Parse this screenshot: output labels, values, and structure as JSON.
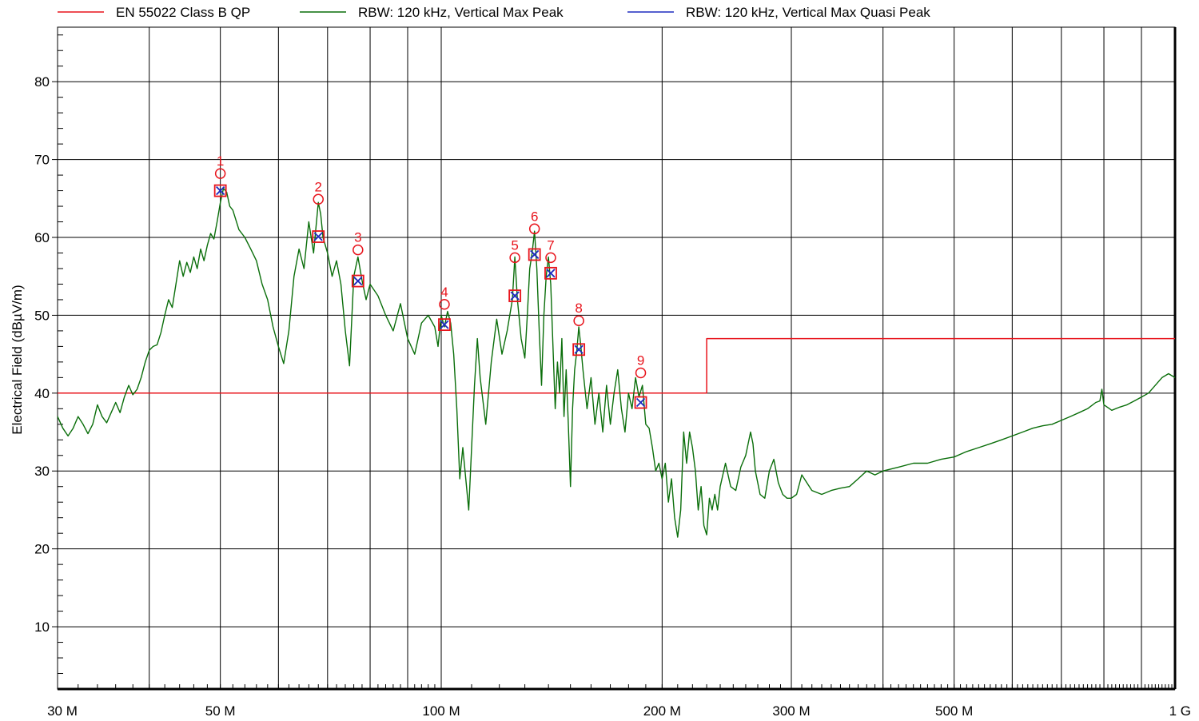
{
  "chart_data": {
    "type": "line",
    "xscale": "log",
    "xlim": [
      30,
      1000
    ],
    "ylim": [
      2,
      87
    ],
    "xlabel": "",
    "ylabel": "Electrical Field (dBµV/m)",
    "grid": true,
    "legend_position": "top",
    "x_major_ticks": [
      {
        "value": 30,
        "label": "30 M"
      },
      {
        "value": 50,
        "label": "50 M"
      },
      {
        "value": 100,
        "label": "100 M"
      },
      {
        "value": 200,
        "label": "200 M"
      },
      {
        "value": 300,
        "label": "300 M"
      },
      {
        "value": 500,
        "label": "500 M"
      },
      {
        "value": 1000,
        "label": "1 G"
      }
    ],
    "x_minor_grid": [
      40,
      60,
      70,
      80,
      90,
      400,
      600,
      700,
      800,
      900
    ],
    "y_ticks": [
      {
        "value": 10,
        "label": "10"
      },
      {
        "value": 20,
        "label": "20"
      },
      {
        "value": 30,
        "label": "30"
      },
      {
        "value": 40,
        "label": "40"
      },
      {
        "value": 50,
        "label": "50"
      },
      {
        "value": 60,
        "label": "60"
      },
      {
        "value": 70,
        "label": "70"
      },
      {
        "value": 80,
        "label": "80"
      }
    ],
    "series": [
      {
        "name": "EN 55022 Class B QP",
        "color": "#e8141c",
        "points": [
          [
            30,
            40
          ],
          [
            230,
            40
          ],
          [
            230,
            47
          ],
          [
            1000,
            47
          ]
        ]
      },
      {
        "name": "RBW: 120 kHz, Vertical Max Peak",
        "color": "#0a6e0a",
        "points": [
          [
            30,
            37
          ],
          [
            30.5,
            35.5
          ],
          [
            31,
            34.5
          ],
          [
            31.5,
            35.5
          ],
          [
            32,
            37
          ],
          [
            32.5,
            36
          ],
          [
            33,
            34.8
          ],
          [
            33.5,
            36
          ],
          [
            34,
            38.5
          ],
          [
            34.5,
            37
          ],
          [
            35,
            36.2
          ],
          [
            35.5,
            37.5
          ],
          [
            36,
            38.8
          ],
          [
            36.5,
            37.5
          ],
          [
            37,
            39.5
          ],
          [
            37.5,
            41
          ],
          [
            38,
            39.8
          ],
          [
            38.5,
            40.5
          ],
          [
            39,
            42
          ],
          [
            39.5,
            44
          ],
          [
            40,
            45.5
          ],
          [
            40.5,
            46
          ],
          [
            41,
            46.2
          ],
          [
            41.5,
            47.8
          ],
          [
            42,
            50
          ],
          [
            42.5,
            52
          ],
          [
            43,
            51
          ],
          [
            43.5,
            54
          ],
          [
            44,
            57
          ],
          [
            44.5,
            55
          ],
          [
            45,
            56.8
          ],
          [
            45.5,
            55.5
          ],
          [
            46,
            57.5
          ],
          [
            46.5,
            56
          ],
          [
            47,
            58.5
          ],
          [
            47.5,
            57
          ],
          [
            48,
            59
          ],
          [
            48.5,
            60.5
          ],
          [
            49,
            59.8
          ],
          [
            49.5,
            62
          ],
          [
            50,
            64.5
          ],
          [
            50.5,
            66.3
          ],
          [
            51,
            65.8
          ],
          [
            51.5,
            64
          ],
          [
            52,
            63.5
          ],
          [
            53,
            61
          ],
          [
            54,
            60
          ],
          [
            55,
            58.5
          ],
          [
            56,
            57
          ],
          [
            57,
            54
          ],
          [
            58,
            52
          ],
          [
            59,
            48.5
          ],
          [
            60,
            46
          ],
          [
            61,
            43.8
          ],
          [
            62,
            48
          ],
          [
            63,
            55
          ],
          [
            64,
            58.5
          ],
          [
            65,
            56
          ],
          [
            66,
            62
          ],
          [
            67,
            58
          ],
          [
            68,
            64.5
          ],
          [
            68.5,
            63
          ],
          [
            69,
            60
          ],
          [
            70,
            58
          ],
          [
            71,
            55
          ],
          [
            72,
            57
          ],
          [
            73,
            54
          ],
          [
            74,
            48
          ],
          [
            75,
            43.5
          ],
          [
            76,
            55
          ],
          [
            77,
            57.5
          ],
          [
            78,
            54.5
          ],
          [
            79,
            52
          ],
          [
            80,
            54
          ],
          [
            82,
            52.5
          ],
          [
            84,
            50
          ],
          [
            86,
            48
          ],
          [
            88,
            51.5
          ],
          [
            90,
            47
          ],
          [
            92,
            45
          ],
          [
            94,
            49
          ],
          [
            96,
            50
          ],
          [
            98,
            48.5
          ],
          [
            99,
            46
          ],
          [
            100,
            50
          ],
          [
            101,
            48.5
          ],
          [
            102,
            50.5
          ],
          [
            103,
            49
          ],
          [
            104,
            45
          ],
          [
            105,
            38
          ],
          [
            106,
            29
          ],
          [
            107,
            33
          ],
          [
            108,
            29
          ],
          [
            109,
            25
          ],
          [
            110,
            33
          ],
          [
            111,
            41
          ],
          [
            112,
            47
          ],
          [
            113,
            42
          ],
          [
            115,
            36
          ],
          [
            117,
            44
          ],
          [
            119,
            49.5
          ],
          [
            121,
            45
          ],
          [
            123,
            48
          ],
          [
            125,
            52
          ],
          [
            126,
            57.5
          ],
          [
            127,
            52
          ],
          [
            128.5,
            47
          ],
          [
            130,
            44.5
          ],
          [
            131,
            50
          ],
          [
            132,
            56
          ],
          [
            133,
            58
          ],
          [
            134,
            60.8
          ],
          [
            135,
            56
          ],
          [
            136,
            48
          ],
          [
            137,
            41
          ],
          [
            138,
            50
          ],
          [
            139,
            55
          ],
          [
            140,
            57.5
          ],
          [
            141,
            54
          ],
          [
            142,
            46
          ],
          [
            143,
            38
          ],
          [
            144,
            44
          ],
          [
            145,
            40
          ],
          [
            146,
            47
          ],
          [
            147,
            37
          ],
          [
            148,
            43
          ],
          [
            149,
            36
          ],
          [
            150,
            28
          ],
          [
            151,
            38
          ],
          [
            152,
            43
          ],
          [
            153,
            45.3
          ],
          [
            154,
            48.5
          ],
          [
            155,
            46
          ],
          [
            156,
            43
          ],
          [
            158,
            38
          ],
          [
            160,
            42
          ],
          [
            162,
            36
          ],
          [
            164,
            40
          ],
          [
            166,
            35
          ],
          [
            168,
            41
          ],
          [
            170,
            36
          ],
          [
            172,
            40
          ],
          [
            174,
            43
          ],
          [
            176,
            38
          ],
          [
            178,
            35
          ],
          [
            180,
            40
          ],
          [
            182,
            38
          ],
          [
            184,
            42
          ],
          [
            186,
            39.5
          ],
          [
            188,
            41
          ],
          [
            190,
            36
          ],
          [
            192,
            35.5
          ],
          [
            194,
            33
          ],
          [
            196,
            30
          ],
          [
            198,
            31
          ],
          [
            200,
            29
          ],
          [
            202,
            31
          ],
          [
            204,
            26
          ],
          [
            206,
            29
          ],
          [
            208,
            24
          ],
          [
            210,
            21.5
          ],
          [
            212,
            25
          ],
          [
            214,
            35
          ],
          [
            216,
            31
          ],
          [
            218,
            35
          ],
          [
            220,
            33
          ],
          [
            222,
            30
          ],
          [
            224,
            25
          ],
          [
            226,
            28
          ],
          [
            228,
            23
          ],
          [
            230,
            21.8
          ],
          [
            232,
            26.5
          ],
          [
            234,
            25
          ],
          [
            236,
            27
          ],
          [
            238,
            25
          ],
          [
            240,
            28
          ],
          [
            244,
            31
          ],
          [
            248,
            28
          ],
          [
            252,
            27.5
          ],
          [
            256,
            30.5
          ],
          [
            260,
            32
          ],
          [
            264,
            35
          ],
          [
            266,
            33.5
          ],
          [
            268,
            30
          ],
          [
            272,
            27
          ],
          [
            276,
            26.5
          ],
          [
            280,
            30
          ],
          [
            284,
            31.5
          ],
          [
            288,
            28.5
          ],
          [
            292,
            27
          ],
          [
            296,
            26.5
          ],
          [
            300,
            26.5
          ],
          [
            305,
            27
          ],
          [
            310,
            29.5
          ],
          [
            315,
            28.5
          ],
          [
            320,
            27.5
          ],
          [
            330,
            27
          ],
          [
            340,
            27.5
          ],
          [
            350,
            27.8
          ],
          [
            360,
            28
          ],
          [
            370,
            29
          ],
          [
            380,
            30
          ],
          [
            390,
            29.5
          ],
          [
            400,
            30
          ],
          [
            420,
            30.5
          ],
          [
            440,
            31
          ],
          [
            460,
            31
          ],
          [
            480,
            31.5
          ],
          [
            500,
            31.8
          ],
          [
            520,
            32.5
          ],
          [
            540,
            33
          ],
          [
            560,
            33.5
          ],
          [
            580,
            34
          ],
          [
            600,
            34.5
          ],
          [
            620,
            35
          ],
          [
            640,
            35.5
          ],
          [
            660,
            35.8
          ],
          [
            680,
            36
          ],
          [
            700,
            36.5
          ],
          [
            720,
            37
          ],
          [
            740,
            37.5
          ],
          [
            760,
            38
          ],
          [
            780,
            38.8
          ],
          [
            790,
            39
          ],
          [
            795,
            40.5
          ],
          [
            800,
            38.5
          ],
          [
            820,
            37.8
          ],
          [
            840,
            38.2
          ],
          [
            860,
            38.5
          ],
          [
            880,
            39
          ],
          [
            900,
            39.5
          ],
          [
            920,
            40
          ],
          [
            940,
            41
          ],
          [
            960,
            42
          ],
          [
            980,
            42.5
          ],
          [
            1000,
            42
          ]
        ]
      },
      {
        "name": "RBW: 120 kHz, Vertical Max Quasi Peak",
        "color": "#1f2bbf",
        "points": []
      }
    ],
    "markers": [
      {
        "label": "1",
        "x": 50.0,
        "peak": 68.2,
        "qp": 66.0
      },
      {
        "label": "2",
        "x": 68.0,
        "peak": 64.9,
        "qp": 60.1
      },
      {
        "label": "3",
        "x": 77.0,
        "peak": 58.4,
        "qp": 54.4
      },
      {
        "label": "4",
        "x": 101.0,
        "peak": 51.4,
        "qp": 48.8
      },
      {
        "label": "5",
        "x": 126.0,
        "peak": 57.4,
        "qp": 52.5
      },
      {
        "label": "6",
        "x": 134.0,
        "peak": 61.1,
        "qp": 57.8
      },
      {
        "label": "7",
        "x": 141.0,
        "peak": 57.4,
        "qp": 55.4
      },
      {
        "label": "8",
        "x": 154.0,
        "peak": 49.3,
        "qp": 45.6
      },
      {
        "label": "9",
        "x": 187.0,
        "peak": 42.6,
        "qp": 38.8
      }
    ],
    "marker_color": "#e8141c",
    "marker_fill_color": "#1f2bbf",
    "grid_color": "#000000"
  }
}
